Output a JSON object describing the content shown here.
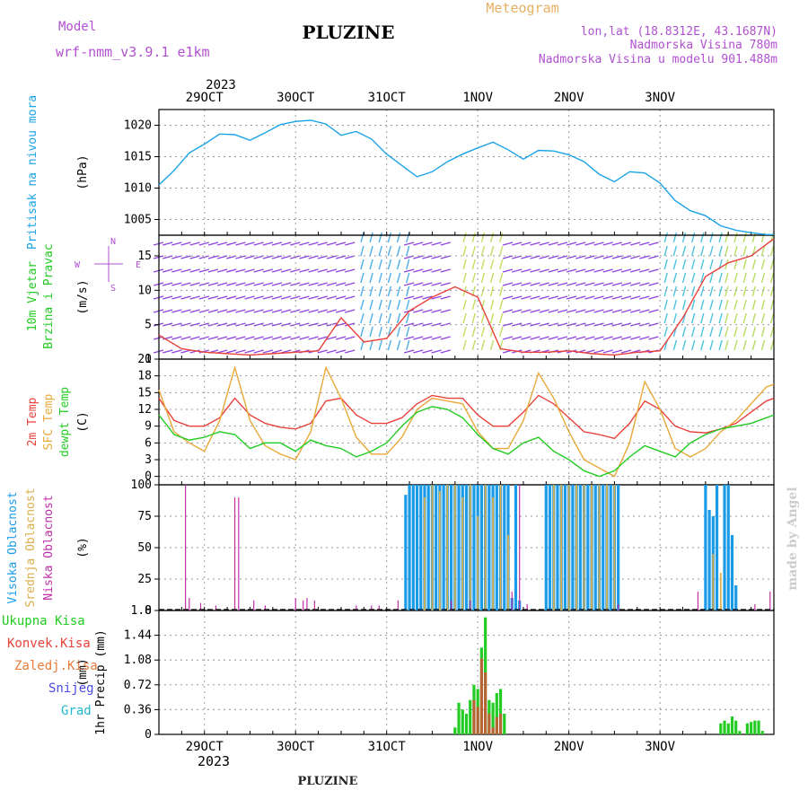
{
  "header": {
    "model_label": "Model",
    "model_name": "wrf-nmm_v3.9.1 e1km",
    "title": "PLUZINE",
    "meteogram_label": "Meteogram",
    "coords": "lon,lat (18.8312E, 43.1687N)",
    "altitude": "Nadmorska Visina 780m",
    "model_altitude": "Nadmorska Visina u modelu 901.488m",
    "year_top": "2023",
    "year_bottom": "2023",
    "footer": "PLUZINE",
    "credit": "made by Angel"
  },
  "colors": {
    "pressure": "#1aa3e8",
    "temp2m": "#e8413a",
    "sfc_temp": "#e8a93a",
    "dewpt": "#22cc22",
    "high_cloud": "#1a9be8",
    "mid_cloud": "#d9b04a",
    "low_cloud": "#c030a8",
    "total_precip": "#22cc22",
    "conv_precip": "#e8413a",
    "frozen_precip": "#e87a3a",
    "snow": "#4a4ae8",
    "hail": "#22b8c8",
    "wind_text": "#22cc22",
    "speed_line": "#e8413a",
    "purple_text": "#b050d0"
  },
  "chart_data": [
    {
      "type": "line",
      "panel": "pressure",
      "ylabel": "Pritisak na nivou mora",
      "unit": "(hPa)",
      "ylim": [
        1002.5,
        1022.5
      ],
      "yticks": [
        1005,
        1010,
        1015,
        1020
      ],
      "x_hours": [
        0,
        4,
        8,
        12,
        16,
        20,
        24,
        28,
        32,
        36,
        40,
        44,
        48,
        52,
        56,
        60,
        64,
        68,
        72,
        76,
        80,
        84,
        88,
        92,
        96,
        100,
        104,
        108,
        112,
        116,
        120,
        124,
        128,
        132,
        136,
        140,
        144,
        148,
        152,
        156,
        160,
        162
      ],
      "values": [
        1010.5,
        1012.8,
        1015.6,
        1017.0,
        1018.6,
        1018.5,
        1017.6,
        1018.8,
        1020.1,
        1020.6,
        1020.8,
        1020.2,
        1018.4,
        1019.0,
        1017.8,
        1015.4,
        1013.6,
        1011.8,
        1012.6,
        1014.2,
        1015.4,
        1016.4,
        1017.3,
        1016.1,
        1014.6,
        1016.0,
        1015.9,
        1015.3,
        1014.2,
        1012.2,
        1011.0,
        1012.6,
        1012.4,
        1010.8,
        1008.0,
        1006.4,
        1005.6,
        1004.0,
        1003.3,
        1002.9,
        1002.6,
        1002.6
      ]
    },
    {
      "type": "line",
      "panel": "wind",
      "ylabel": "10m Vjetar Brzina i Pravac",
      "unit": "(m/s)",
      "ylim": [
        0,
        18
      ],
      "yticks": [
        0,
        5,
        10,
        15
      ],
      "compass": [
        "N",
        "E",
        "S",
        "W"
      ],
      "x_hours": [
        0,
        6,
        12,
        18,
        24,
        30,
        36,
        42,
        48,
        54,
        60,
        66,
        72,
        78,
        84,
        90,
        96,
        102,
        108,
        114,
        120,
        126,
        132,
        138,
        144,
        150,
        156,
        162
      ],
      "series": [
        {
          "name": "speed",
          "values": [
            3.5,
            1.5,
            1.0,
            0.8,
            0.6,
            0.8,
            1.0,
            1.2,
            6.0,
            2.5,
            3.0,
            7.0,
            9.0,
            10.5,
            9.0,
            1.5,
            1.0,
            1.0,
            1.2,
            0.8,
            0.6,
            1.0,
            1.2,
            6.0,
            12.0,
            14.0,
            15.0,
            17.5
          ]
        }
      ]
    },
    {
      "type": "line",
      "panel": "temperature",
      "ylabel": "2m Temp",
      "ylabel2": "SFC Temp",
      "ylabel3": "dewpt Temp",
      "unit": "(C)",
      "ylim": [
        -1.5,
        21
      ],
      "yticks": [
        0,
        3,
        6,
        9,
        12,
        15,
        18,
        21
      ],
      "x_hours": [
        0,
        4,
        8,
        12,
        16,
        20,
        24,
        28,
        32,
        36,
        40,
        44,
        48,
        52,
        56,
        60,
        64,
        68,
        72,
        76,
        80,
        84,
        88,
        92,
        96,
        100,
        104,
        108,
        112,
        116,
        120,
        124,
        128,
        132,
        136,
        140,
        144,
        148,
        152,
        156,
        160,
        162
      ],
      "series": [
        {
          "name": "2m Temp",
          "values": [
            14.0,
            10.0,
            9.0,
            9.0,
            10.5,
            14.0,
            11.0,
            9.5,
            8.8,
            8.5,
            9.5,
            13.5,
            14.0,
            11.0,
            9.5,
            9.5,
            10.5,
            13.0,
            14.5,
            14.0,
            14.0,
            11.0,
            9.0,
            9.0,
            11.5,
            14.5,
            13.0,
            10.5,
            8.0,
            7.5,
            6.8,
            9.5,
            13.5,
            12.0,
            9.0,
            8.0,
            7.8,
            8.5,
            9.5,
            11.5,
            13.5,
            14.0
          ]
        },
        {
          "name": "SFC Temp",
          "values": [
            15.5,
            8.0,
            6.0,
            4.5,
            10.0,
            19.5,
            10.0,
            5.5,
            4.0,
            3.0,
            8.0,
            19.5,
            14.0,
            7.0,
            4.0,
            4.0,
            7.0,
            12.0,
            14.0,
            13.5,
            13.0,
            8.0,
            5.0,
            5.0,
            10.0,
            18.5,
            14.0,
            8.0,
            3.0,
            1.5,
            0.0,
            6.0,
            17.0,
            12.0,
            5.0,
            3.5,
            5.0,
            8.0,
            10.0,
            13.0,
            16.0,
            16.5
          ]
        },
        {
          "name": "dewpt Temp",
          "values": [
            11.0,
            7.5,
            6.5,
            7.0,
            8.0,
            7.5,
            5.0,
            6.0,
            6.0,
            4.5,
            6.5,
            5.5,
            5.0,
            3.5,
            4.5,
            6.0,
            9.0,
            11.5,
            12.5,
            12.0,
            10.5,
            7.5,
            5.0,
            4.0,
            6.0,
            7.0,
            4.5,
            3.0,
            1.0,
            0.0,
            1.0,
            3.5,
            5.5,
            4.5,
            3.5,
            6.0,
            7.5,
            8.5,
            9.0,
            9.5,
            10.5,
            11.0
          ]
        }
      ]
    },
    {
      "type": "bar",
      "panel": "clouds",
      "ylabel": "Visoka Oblacnost",
      "ylabel2": "Srednja Oblacnost",
      "ylabel3": "Niska Oblacnost",
      "unit": "(%)",
      "ylim": [
        0,
        100
      ],
      "yticks": [
        0,
        25,
        50,
        75,
        100
      ],
      "series": [
        {
          "name": "Visoka Oblacnost",
          "x_hours": [
            65,
            66,
            67,
            68,
            69,
            70,
            71,
            72,
            73,
            74,
            75,
            76,
            77,
            78,
            79,
            80,
            81,
            82,
            83,
            84,
            85,
            86,
            87,
            88,
            89,
            90,
            91,
            92,
            93,
            94,
            95,
            102,
            103,
            104,
            105,
            106,
            107,
            108,
            109,
            110,
            111,
            112,
            113,
            114,
            115,
            116,
            117,
            118,
            119,
            120,
            121,
            144,
            145,
            146,
            147,
            149,
            150,
            151,
            152
          ],
          "values": [
            92,
            100,
            100,
            100,
            100,
            100,
            100,
            100,
            100,
            100,
            100,
            100,
            100,
            100,
            100,
            100,
            100,
            100,
            100,
            100,
            100,
            100,
            100,
            100,
            100,
            100,
            100,
            100,
            10,
            100,
            8,
            100,
            100,
            100,
            100,
            100,
            100,
            100,
            100,
            100,
            100,
            100,
            100,
            100,
            100,
            100,
            100,
            100,
            100,
            100,
            100,
            100,
            80,
            75,
            100,
            100,
            100,
            60,
            20
          ]
        },
        {
          "name": "Srednja Oblacnost",
          "x_hours": [
            70,
            72,
            74,
            76,
            78,
            80,
            82,
            84,
            86,
            88,
            90,
            92,
            104,
            106,
            108,
            110,
            112,
            114,
            116,
            118,
            120,
            146,
            148
          ],
          "values": [
            90,
            100,
            95,
            100,
            100,
            90,
            100,
            75,
            100,
            90,
            100,
            60,
            100,
            100,
            100,
            100,
            100,
            100,
            100,
            100,
            100,
            45,
            30
          ]
        },
        {
          "name": "Niska Oblacnost",
          "x_hours": [
            7,
            8,
            11,
            15,
            20,
            21,
            25,
            28,
            36,
            38,
            39,
            41,
            52,
            56,
            58,
            63,
            77,
            82,
            93,
            95,
            97,
            121,
            142,
            157,
            161
          ],
          "values": [
            100,
            10,
            6,
            4,
            90,
            90,
            8,
            4,
            10,
            8,
            10,
            8,
            4,
            4,
            4,
            8,
            8,
            8,
            15,
            100,
            5,
            5,
            15,
            5,
            15
          ]
        }
      ]
    },
    {
      "type": "bar",
      "panel": "precip",
      "ylabel": "1hr Precip",
      "unit": "(mm)",
      "ylim": [
        0,
        1.8
      ],
      "yticks": [
        0,
        0.36,
        0.72,
        1.08,
        1.44,
        1.8
      ],
      "legend": [
        "Ukupna Kisa",
        "Konvek.Kisa",
        "Zaledj.Kisa",
        "Snijeg",
        "Grad"
      ],
      "series": [
        {
          "name": "Ukupna Kisa",
          "x_hours": [
            78,
            79,
            80,
            81,
            82,
            83,
            84,
            85,
            86,
            87,
            88,
            89,
            90,
            91,
            148,
            149,
            150,
            151,
            152,
            153,
            155,
            156,
            157,
            158,
            159
          ],
          "values": [
            0.1,
            0.46,
            0.36,
            0.3,
            0.5,
            0.72,
            0.66,
            1.26,
            1.7,
            0.5,
            0.46,
            0.6,
            0.66,
            0.3,
            0.16,
            0.2,
            0.16,
            0.26,
            0.2,
            0.05,
            0.16,
            0.18,
            0.2,
            0.2,
            0.05
          ]
        },
        {
          "name": "Konvek.Kisa",
          "x_hours": [
            83,
            84,
            85,
            86,
            87,
            88,
            89,
            90
          ],
          "values": [
            0.5,
            0.4,
            1.1,
            0.9,
            0.3,
            0.1,
            0.25,
            0.3
          ]
        }
      ]
    }
  ],
  "x_axis": {
    "labels": [
      "29OCT",
      "30OCT",
      "31OCT",
      "1NOV",
      "2NOV",
      "3NOV"
    ],
    "day_hours": [
      12,
      36,
      60,
      84,
      108,
      132
    ]
  }
}
